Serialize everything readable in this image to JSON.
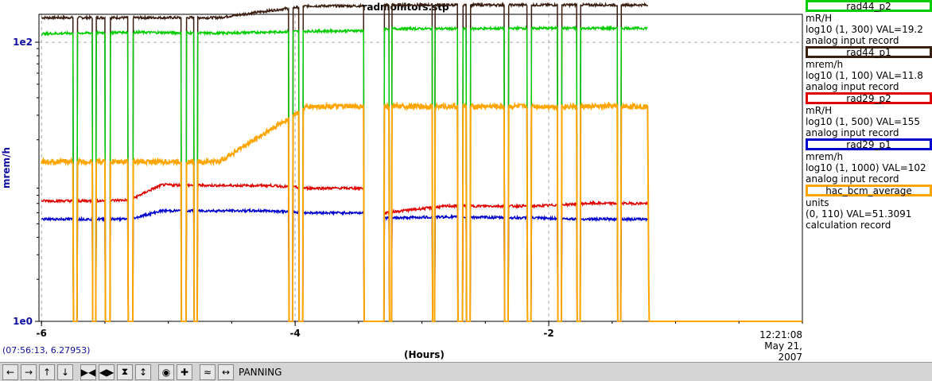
{
  "title": "radmonitors.stp",
  "y_axis_label": "mrem/h",
  "x_axis_label": "(Hours)",
  "coord_readout": "(07:56:13, 6.27953)",
  "end_time": "12:21:08",
  "end_date": "May 21, 2007",
  "mode_label": "PANNING",
  "legend": [
    {
      "name": "rad44_p2",
      "unit": "mR/H",
      "range": "log10 (1, 300) VAL=19.2",
      "type": "analog input record",
      "color": "#00cc00"
    },
    {
      "name": "rad44_p1",
      "unit": "mrem/h",
      "range": "log10 (1, 100) VAL=11.8",
      "type": "analog input record",
      "color": "#3a1e10"
    },
    {
      "name": "rad29_p2",
      "unit": "mR/H",
      "range": "log10 (1, 500) VAL=155",
      "type": "analog input record",
      "color": "#e00000"
    },
    {
      "name": "rad29_p1",
      "unit": "mrem/h",
      "range": "log10 (1, 1000) VAL=102",
      "type": "analog input record",
      "color": "#0000cc"
    },
    {
      "name": "hac_bcm_average",
      "unit": "units",
      "range": "(0, 110) VAL=51.3091",
      "type": "calculation record",
      "color": "#ffa500"
    }
  ],
  "toolbar_icons": [
    "pan-left-icon",
    "pan-right-icon",
    "pan-up-icon",
    "pan-down-icon",
    "zoom-in-x-icon",
    "zoom-out-x-icon",
    "zoom-in-y-icon",
    "zoom-out-y-icon",
    "reset-icon",
    "add-icon",
    "autoscale-icon",
    "pan-mode-icon"
  ],
  "chart_data": {
    "type": "line",
    "title": "radmonitors.stp",
    "xlabel": "(Hours)",
    "ylabel": "mrem/h",
    "x_ticks": [
      -6,
      -4,
      -2
    ],
    "y_ticks": [
      "1e0",
      "1e2"
    ],
    "xlim": [
      -6.02,
      0
    ],
    "ylim_log10": [
      0,
      2.2
    ],
    "y_scale": "log",
    "grid": true,
    "legend_position": "right",
    "series": [
      {
        "name": "rad44_p1",
        "color": "#3a1e10",
        "points": [
          [
            -6,
            150
          ],
          [
            -5.3,
            150
          ],
          [
            -4.6,
            150
          ],
          [
            -3.9,
            182
          ],
          [
            -3.45,
            182
          ],
          [
            -3.3,
            185
          ],
          [
            -2.7,
            185
          ],
          [
            -2.1,
            185
          ],
          [
            -1.7,
            185
          ],
          [
            -1.22,
            185
          ]
        ]
      },
      {
        "name": "rad44_p2",
        "color": "#00cc00",
        "points": [
          [
            -6,
            115
          ],
          [
            -5.3,
            118
          ],
          [
            -4.6,
            116
          ],
          [
            -3.9,
            120
          ],
          [
            -3.45,
            121
          ],
          [
            -3.3,
            125
          ],
          [
            -2.7,
            125
          ],
          [
            -2.1,
            126
          ],
          [
            -1.7,
            126
          ],
          [
            -1.22,
            126
          ]
        ]
      },
      {
        "name": "rad29_p2",
        "color": "#e00000",
        "points": [
          [
            -6,
            7.3
          ],
          [
            -5.6,
            7.3
          ],
          [
            -5.3,
            7.4
          ],
          [
            -5.05,
            9.5
          ],
          [
            -4.6,
            9.4
          ],
          [
            -4.2,
            9.4
          ],
          [
            -3.9,
            9.0
          ],
          [
            -3.45,
            9.0
          ],
          [
            -3.3,
            6.0
          ],
          [
            -2.8,
            6.7
          ],
          [
            -2.1,
            6.7
          ],
          [
            -1.7,
            7.0
          ],
          [
            -1.22,
            7.0
          ]
        ]
      },
      {
        "name": "rad29_p1",
        "color": "#0000cc",
        "points": [
          [
            -6,
            5.4
          ],
          [
            -5.6,
            5.4
          ],
          [
            -5.3,
            5.4
          ],
          [
            -5.05,
            6.2
          ],
          [
            -4.6,
            6.2
          ],
          [
            -4.2,
            6.2
          ],
          [
            -3.9,
            6.0
          ],
          [
            -3.45,
            6.0
          ],
          [
            -3.3,
            5.5
          ],
          [
            -2.8,
            5.6
          ],
          [
            -2.1,
            5.5
          ],
          [
            -1.7,
            5.4
          ],
          [
            -1.22,
            5.4
          ]
        ]
      },
      {
        "name": "hac_bcm_average",
        "color": "#ffa500",
        "points": [
          [
            -6,
            0.52
          ],
          [
            -5.3,
            0.52
          ],
          [
            -4.6,
            0.52
          ],
          [
            -3.9,
            0.7
          ],
          [
            -3.45,
            0.7
          ],
          [
            -3.3,
            0.7
          ],
          [
            -2.7,
            0.7
          ],
          [
            -2.1,
            0.7
          ],
          [
            -1.7,
            0.7
          ],
          [
            -1.22,
            0.7
          ],
          [
            -1.21,
            0.0
          ],
          [
            0,
            0.0
          ]
        ]
      }
    ],
    "dropouts_hours": [
      [
        -5.75,
        -5.72
      ],
      [
        -5.6,
        -5.57
      ],
      [
        -5.5,
        -5.46
      ],
      [
        -5.32,
        -5.28
      ],
      [
        -4.9,
        -4.86
      ],
      [
        -4.8,
        -4.77
      ],
      [
        -4.05,
        -4.02
      ],
      [
        -3.97,
        -3.94
      ],
      [
        -3.46,
        -3.3
      ],
      [
        -3.26,
        -3.24
      ],
      [
        -2.92,
        -2.9
      ],
      [
        -2.72,
        -2.68
      ],
      [
        -2.65,
        -2.62
      ],
      [
        -2.35,
        -2.32
      ],
      [
        -2.17,
        -2.14
      ],
      [
        -1.93,
        -1.9
      ],
      [
        -1.78,
        -1.75
      ],
      [
        -1.46,
        -1.43
      ]
    ]
  }
}
